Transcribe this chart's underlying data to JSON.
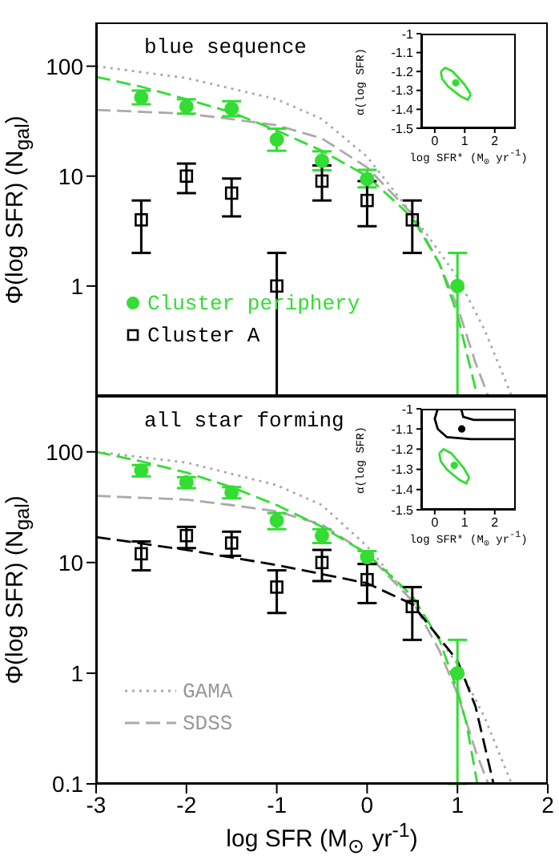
{
  "chart_data": [
    {
      "type": "scatter",
      "title": "blue sequence",
      "ylabel": "Φ(log SFR) (N$_{gal}$)",
      "xlim": [
        -3,
        2
      ],
      "xticks": [
        -3,
        -2,
        -1,
        0,
        1,
        2
      ],
      "ylim": [
        0.1,
        250
      ],
      "yticks": [
        1,
        10,
        100
      ],
      "log": "y",
      "tick_labels": "y",
      "legend": "bottom left",
      "series": [
        {
          "type": "line",
          "color": "#aaaaaa",
          "line_style": "dotted",
          "x": [
            -3,
            -2,
            -1,
            -0.5,
            0,
            0.5,
            1,
            1.3,
            1.6
          ],
          "values": [
            100,
            78,
            50,
            33,
            15,
            4.5,
            1.2,
            0.4,
            0.1
          ]
        },
        {
          "type": "line",
          "color": "#aaaaaa",
          "line_style": "dashed",
          "x": [
            -3,
            -2,
            -1.5,
            -1,
            -0.5,
            0,
            0.5,
            0.8,
            1,
            1.2,
            1.34
          ],
          "values": [
            40,
            37,
            33,
            29,
            22,
            12,
            4.5,
            1.6,
            0.65,
            0.2,
            0.1
          ]
        },
        {
          "type": "line",
          "color": "#33dd33",
          "line_style": "dashed",
          "x": [
            -3,
            -2.5,
            -2,
            -1.5,
            -1,
            -0.5,
            0,
            0.5,
            0.8,
            1,
            1.1,
            1.22
          ],
          "values": [
            80,
            65,
            50,
            38,
            26,
            17,
            10,
            4.2,
            1.6,
            0.55,
            0.25,
            0.1
          ]
        },
        {
          "name": "Cluster periphery",
          "color": "#33dd33",
          "marker": "circle",
          "x": [
            -2.5,
            -2,
            -1.5,
            -1,
            -0.5,
            0,
            1
          ],
          "values": [
            52,
            43,
            41,
            21.5,
            13.8,
            9.4,
            1
          ],
          "errors": [
            [
              45,
              60
            ],
            [
              37,
              50
            ],
            [
              35,
              48
            ],
            [
              17,
              27
            ],
            [
              11.3,
              16.8
            ],
            [
              7.9,
              11.4
            ],
            [
              0.1,
              2
            ]
          ]
        },
        {
          "name": "Cluster A",
          "color": "#000000",
          "marker": "square",
          "x": [
            -2.5,
            -2,
            -1.5,
            -1,
            -0.5,
            0,
            0.5
          ],
          "values": [
            4,
            10,
            7,
            1,
            9,
            6,
            4
          ],
          "errors": [
            [
              2,
              6
            ],
            [
              7,
              13
            ],
            [
              4.3,
              9.5
            ],
            [
              0.1,
              2
            ],
            [
              6,
              12.5
            ],
            [
              3.5,
              9
            ],
            [
              2,
              6
            ]
          ]
        }
      ]
    },
    {
      "type": "scatter",
      "ylabel": "α(log SFR)",
      "xlabel": "log SFR* (M$_{⊙}$ yr$^{-1}$)",
      "xlim": [
        -0.45,
        2.7
      ],
      "xticks": [
        0,
        1,
        2
      ],
      "ylim": [
        -1.5,
        -1
      ],
      "yticks": [
        -1.5,
        -1.4,
        -1.3,
        -1.2,
        -1.1,
        -1
      ],
      "series": [
        {
          "type": "line",
          "color": "#33dd33",
          "line_style": "solid",
          "x": [
            0.2,
            0.35,
            0.6,
            1.0,
            1.2
          ],
          "values": [
            -1.2,
            -1.18,
            -1.2,
            -1.27,
            -1.32
          ]
        },
        {
          "type": "line",
          "color": "#33dd33",
          "line_style": "solid",
          "x": [
            0.2,
            0.25,
            0.45,
            0.85,
            1.1,
            1.2
          ],
          "values": [
            -1.2,
            -1.24,
            -1.28,
            -1.33,
            -1.35,
            -1.32
          ]
        },
        {
          "color": "#33dd33",
          "marker": "circle",
          "x": [
            0.7
          ],
          "values": [
            -1.26
          ]
        }
      ]
    },
    {
      "type": "scatter",
      "title": "all star forming",
      "ylabel": "Φ(log SFR) (N$_{gal}$)",
      "xlabel": "log SFR (M$_{⊙}$ yr$^{-1}$)",
      "xlim": [
        -3,
        2
      ],
      "xticks": [
        -3,
        -2,
        -1,
        0,
        1,
        2
      ],
      "ylim": [
        0.1,
        320
      ],
      "yticks": [
        0.1,
        1,
        10,
        100
      ],
      "log": "y",
      "legend": "bottom left",
      "series": [
        {
          "type": "line",
          "name": "GAMA",
          "color": "#aaaaaa",
          "line_style": "dotted",
          "x": [
            -3,
            -2,
            -1,
            -0.5,
            0,
            0.5,
            1,
            1.3,
            1.6
          ],
          "values": [
            100,
            80,
            50,
            33,
            14,
            4.5,
            1.2,
            0.4,
            0.1
          ]
        },
        {
          "type": "line",
          "name": "SDSS",
          "color": "#aaaaaa",
          "line_style": "dashed",
          "x": [
            -3,
            -2,
            -1.5,
            -1,
            -0.5,
            0,
            0.5,
            0.8,
            1,
            1.2,
            1.34
          ],
          "values": [
            40,
            37,
            33,
            29,
            22,
            12,
            4.5,
            1.6,
            0.65,
            0.2,
            0.1
          ]
        },
        {
          "type": "line",
          "color": "#33dd33",
          "line_style": "dashed",
          "x": [
            -3,
            -2.5,
            -2,
            -1.5,
            -1,
            -0.5,
            0,
            0.5,
            0.8,
            1,
            1.1,
            1.22
          ],
          "values": [
            100,
            82,
            65,
            48,
            33,
            21,
            12,
            5,
            2,
            0.7,
            0.35,
            0.1
          ]
        },
        {
          "type": "line",
          "color": "#000000",
          "line_style": "dashed",
          "x": [
            -3,
            -2,
            -1,
            0,
            0.5,
            1,
            1.2,
            1.4
          ],
          "values": [
            17,
            13,
            9.5,
            6.5,
            4.2,
            1.3,
            0.5,
            0.1
          ]
        },
        {
          "color": "#33dd33",
          "marker": "circle",
          "x": [
            -2.5,
            -2,
            -1.5,
            -1,
            -0.5,
            0,
            1
          ],
          "values": [
            68,
            53,
            43,
            24,
            17.5,
            11.2,
            1
          ],
          "errors": [
            [
              60,
              76
            ],
            [
              47,
              59
            ],
            [
              38,
              48
            ],
            [
              20,
              28
            ],
            [
              15,
              20
            ],
            [
              9.7,
              12.7
            ],
            [
              0.1,
              2
            ]
          ]
        },
        {
          "color": "#000000",
          "marker": "square",
          "x": [
            -2.5,
            -2,
            -1.5,
            -1,
            -0.5,
            0,
            0.5
          ],
          "values": [
            12,
            17.5,
            15,
            6,
            10,
            7,
            4
          ],
          "errors": [
            [
              8.5,
              15.5
            ],
            [
              13.5,
              21
            ],
            [
              11.5,
              19
            ],
            [
              3.5,
              8.5
            ],
            [
              6.8,
              13
            ],
            [
              4.3,
              9.7
            ],
            [
              2,
              6
            ]
          ]
        }
      ]
    },
    {
      "type": "scatter",
      "ylabel": "α(log SFR)",
      "xlabel": "log SFR* (M$_{⊙}$ yr$^{-1}$)",
      "xlim": [
        -0.45,
        2.7
      ],
      "xticks": [
        0,
        1,
        2
      ],
      "ylim": [
        -1.5,
        -1
      ],
      "yticks": [
        -1.5,
        -1.4,
        -1.3,
        -1.2,
        -1.1,
        -1
      ],
      "series": [
        {
          "type": "line",
          "color": "#000000",
          "line_style": "solid",
          "x": [
            0.1,
            0,
            0.1,
            0.4,
            1.2,
            2.7
          ],
          "values": [
            -1,
            -1.05,
            -1.1,
            -1.14,
            -1.15,
            -1.15
          ]
        },
        {
          "type": "line",
          "color": "#000000",
          "line_style": "solid",
          "x": [
            0.88,
            0.95,
            1.3,
            2.7
          ],
          "values": [
            -1,
            -1.04,
            -1.055,
            -1.055
          ]
        },
        {
          "type": "line",
          "color": "#33dd33",
          "line_style": "solid",
          "x": [
            0.15,
            0.3,
            0.55,
            0.95,
            1.15
          ],
          "values": [
            -1.22,
            -1.2,
            -1.22,
            -1.29,
            -1.34
          ]
        },
        {
          "type": "line",
          "color": "#33dd33",
          "line_style": "solid",
          "x": [
            0.15,
            0.2,
            0.4,
            0.8,
            1.05,
            1.15
          ],
          "values": [
            -1.22,
            -1.26,
            -1.3,
            -1.35,
            -1.37,
            -1.34
          ]
        },
        {
          "color": "#33dd33",
          "marker": "circle",
          "x": [
            0.65
          ],
          "values": [
            -1.28
          ]
        },
        {
          "color": "#000000",
          "marker": "circle",
          "x": [
            0.9
          ],
          "values": [
            -1.1
          ]
        }
      ]
    }
  ]
}
